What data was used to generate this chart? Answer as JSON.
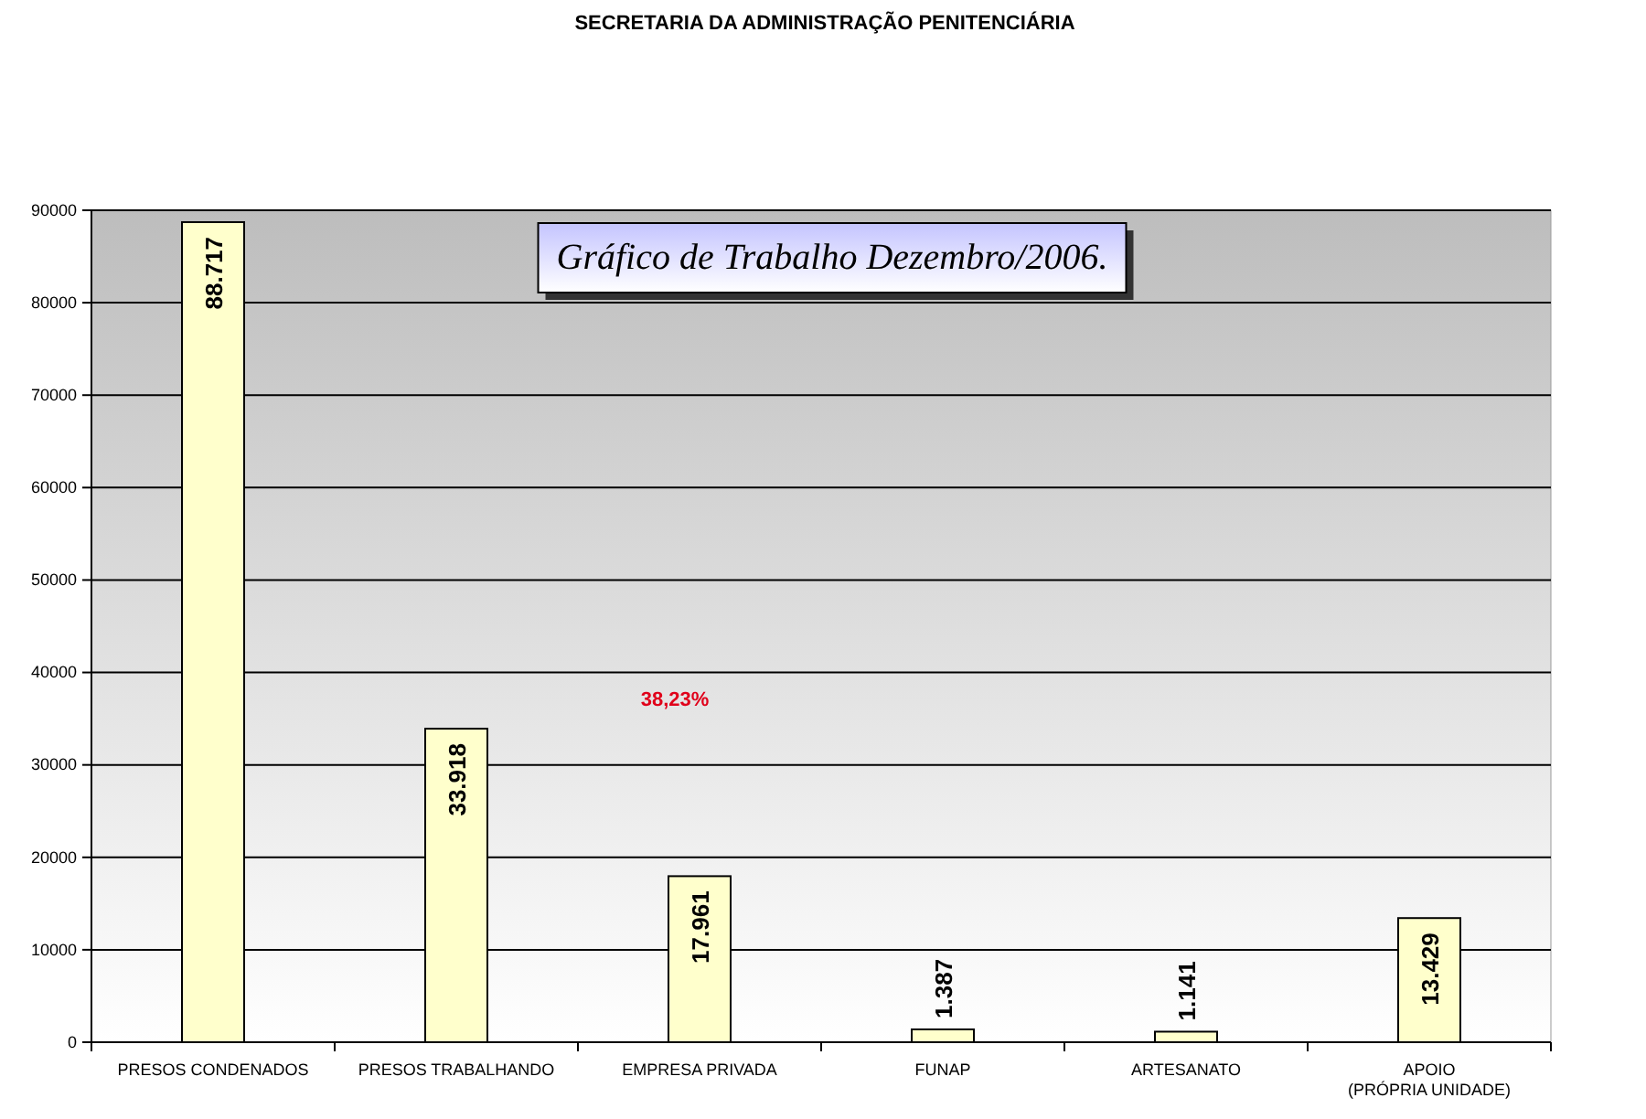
{
  "chart_data": {
    "type": "bar",
    "title": "Gráfico de Trabalho Dezembro/2006.",
    "categories": [
      "PRESOS CONDENADOS",
      "PRESOS TRABALHANDO",
      "EMPRESA PRIVADA",
      "FUNAP",
      "ARTESANATO",
      "APOIO\n(PRÓPRIA UNIDADE)"
    ],
    "values": [
      88717,
      33918,
      17961,
      1387,
      1141,
      13429
    ],
    "value_labels": [
      "88.717",
      "33.918",
      "17.961",
      "1.387",
      "1.141",
      "13.429"
    ],
    "color": "#ffffcc",
    "ylim": [
      0,
      90000
    ],
    "yticks": [
      0,
      10000,
      20000,
      30000,
      40000,
      50000,
      60000,
      70000,
      80000,
      90000
    ],
    "grid": "y",
    "annotations": [
      "SECRETARIA DA ADMINISTRAÇÃO PENITENCIÁRIA",
      "38,23%"
    ]
  }
}
